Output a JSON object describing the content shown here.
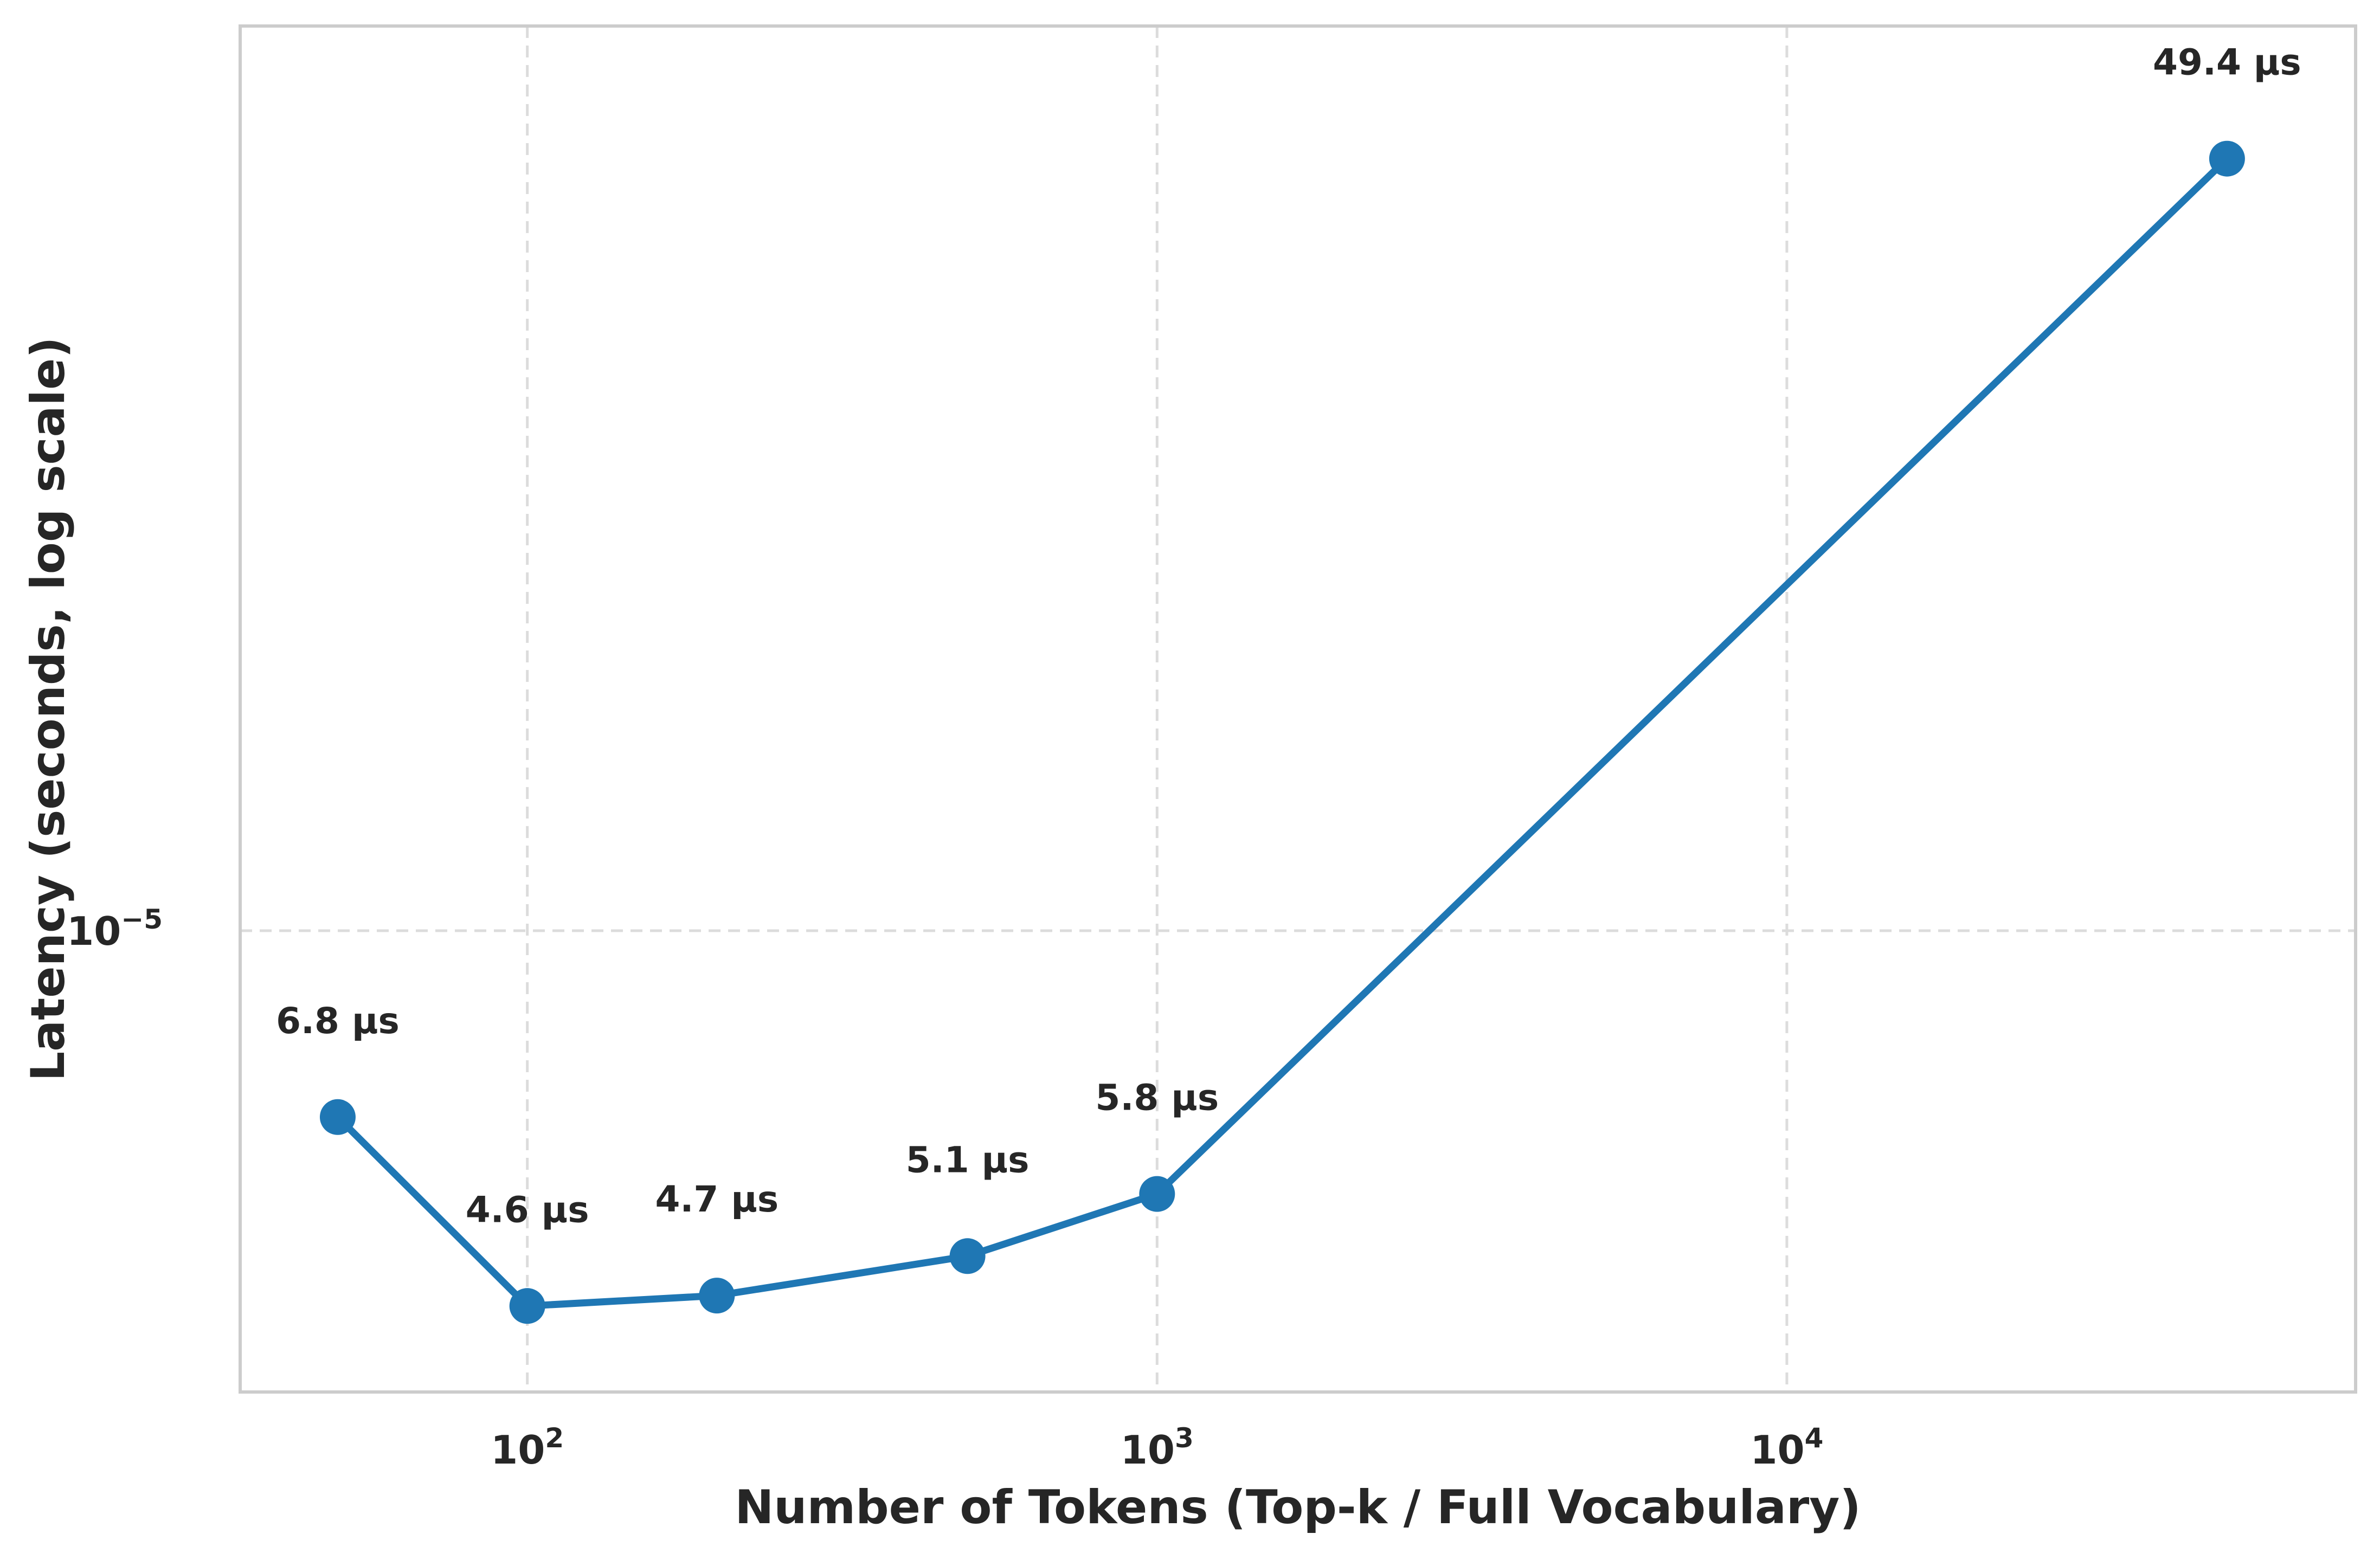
{
  "chart_data": {
    "type": "line",
    "xlabel": "Number of Tokens (Top-k / Full Vocabulary)",
    "ylabel": "Latency (seconds, log scale)",
    "x_scale": "log",
    "y_scale": "log",
    "xlim": [
      35,
      80000
    ],
    "ylim": [
      3.85e-06,
      6.5e-05
    ],
    "grid": true,
    "legend": "none",
    "x_ticks": [
      {
        "value": 100,
        "base": "10",
        "exp": "2"
      },
      {
        "value": 1000,
        "base": "10",
        "exp": "3"
      },
      {
        "value": 10000,
        "base": "10",
        "exp": "4"
      }
    ],
    "y_ticks": [
      {
        "value": 1e-05,
        "base": "10",
        "exp": "−5"
      }
    ],
    "series": [
      {
        "color": "#1f77b4",
        "points": [
          {
            "x": 50,
            "y": 6.8e-06,
            "label": "6.8 µs"
          },
          {
            "x": 100,
            "y": 4.6e-06,
            "label": "4.6 µs"
          },
          {
            "x": 200,
            "y": 4.7e-06,
            "label": "4.7 µs"
          },
          {
            "x": 500,
            "y": 5.1e-06,
            "label": "5.1 µs"
          },
          {
            "x": 1000,
            "y": 5.8e-06,
            "label": "5.8 µs"
          },
          {
            "x": 50000,
            "y": 4.94e-05,
            "label": "49.4 µs"
          }
        ]
      }
    ]
  }
}
